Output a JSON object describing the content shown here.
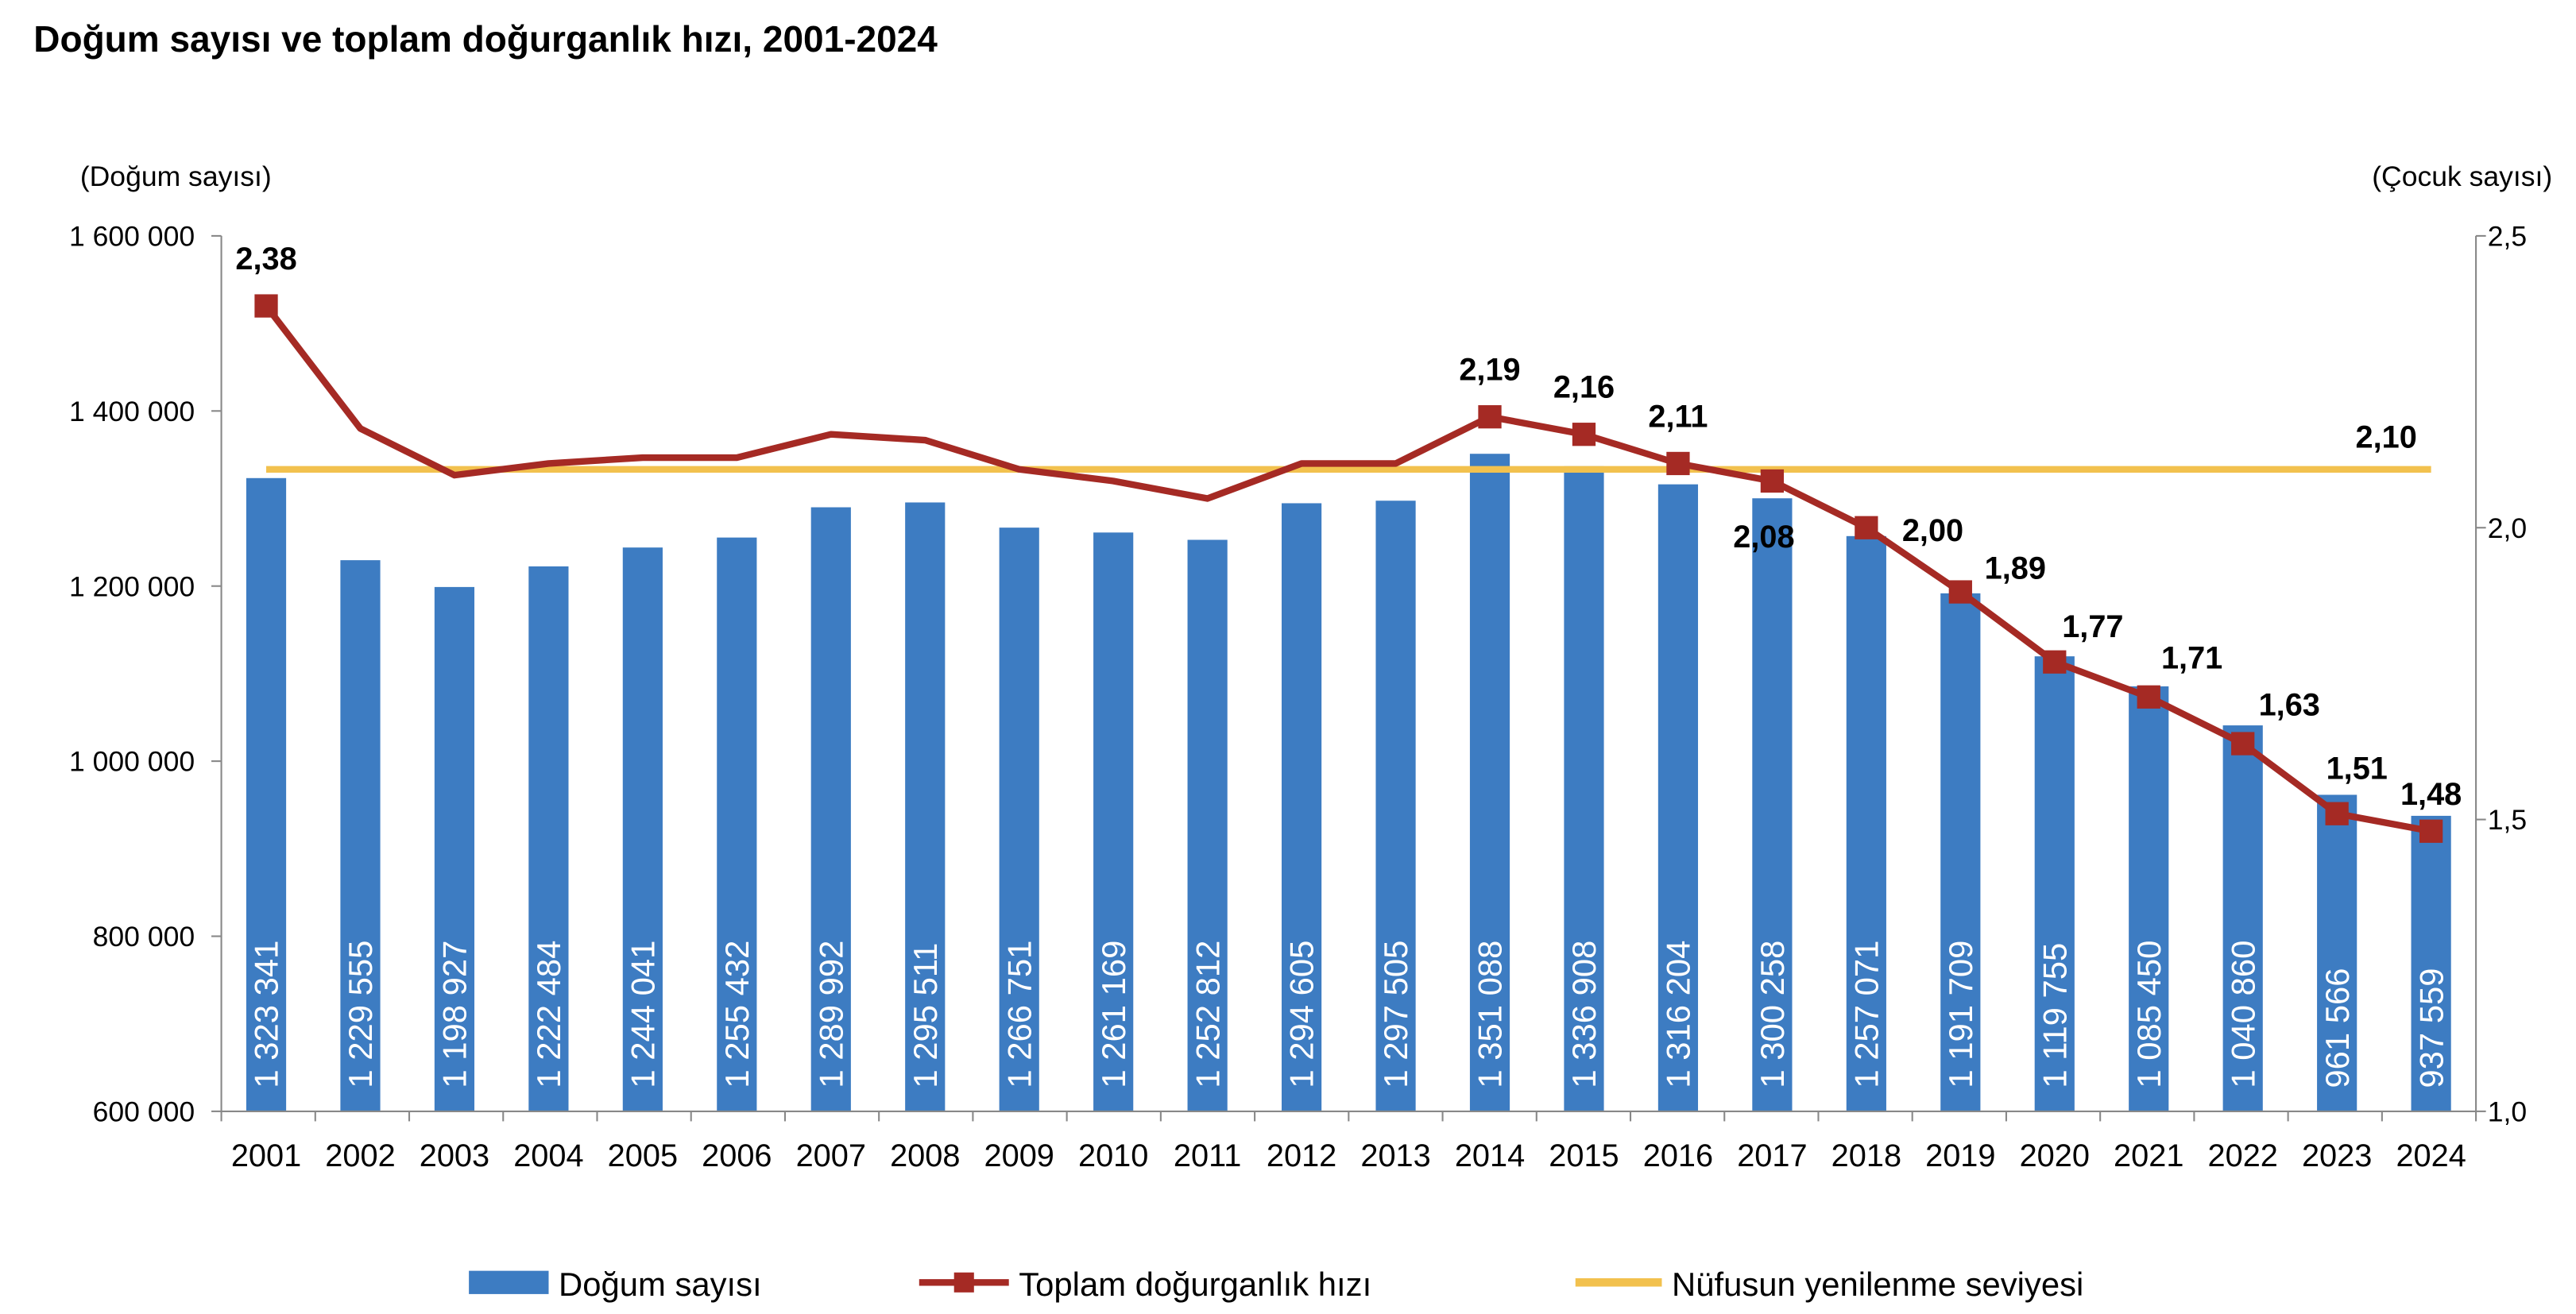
{
  "chart_data": {
    "type": "bar+line",
    "title": "Doğum sayısı ve toplam doğurganlık hızı, 2001-2024",
    "ylabel_left": "(Doğum sayısı)",
    "ylabel_right": "(Çocuk sayısı)",
    "ylim_left": [
      600000,
      1600000
    ],
    "ylim_right": [
      1.0,
      2.5
    ],
    "left_ticks": [
      "600 000",
      "800 000",
      "1 000 000",
      "1 200 000",
      "1 400 000",
      "1 600 000"
    ],
    "left_tick_values": [
      600000,
      800000,
      1000000,
      1200000,
      1400000,
      1600000
    ],
    "right_ticks": [
      "1,0",
      "1,5",
      "2,0",
      "2,5"
    ],
    "right_tick_values": [
      1.0,
      1.5,
      2.0,
      2.5
    ],
    "categories": [
      "2001",
      "2002",
      "2003",
      "2004",
      "2005",
      "2006",
      "2007",
      "2008",
      "2009",
      "2010",
      "2011",
      "2012",
      "2013",
      "2014",
      "2015",
      "2016",
      "2017",
      "2018",
      "2019",
      "2020",
      "2021",
      "2022",
      "2023",
      "2024"
    ],
    "grid": false,
    "legend_position": "bottom",
    "series": [
      {
        "name": "Doğum sayısı",
        "type": "bar",
        "axis": "left",
        "color": "#3D7CC2",
        "values": [
          1323341,
          1229555,
          1198927,
          1222484,
          1244041,
          1255432,
          1289992,
          1295511,
          1266751,
          1261169,
          1252812,
          1294605,
          1297505,
          1351088,
          1336908,
          1316204,
          1300258,
          1257071,
          1191709,
          1119755,
          1085450,
          1040860,
          961566,
          937559
        ],
        "labels": [
          "1 323 341",
          "1 229 555",
          "1 198 927",
          "1 222 484",
          "1 244 041",
          "1 255 432",
          "1 289 992",
          "1 295 511",
          "1 266 751",
          "1 261 169",
          "1 252 812",
          "1 294 605",
          "1 297 505",
          "1 351 088",
          "1 336 908",
          "1 316 204",
          "1 300 258",
          "1 257 071",
          "1 191 709",
          "1 119 755",
          "1 085 450",
          "1 040 860",
          "961 566",
          "937 559"
        ]
      },
      {
        "name": "Toplam doğurganlık hızı",
        "type": "line",
        "axis": "right",
        "color": "#A52A24",
        "values": [
          2.38,
          2.17,
          2.09,
          2.11,
          2.12,
          2.12,
          2.16,
          2.15,
          2.1,
          2.08,
          2.05,
          2.11,
          2.11,
          2.19,
          2.16,
          2.11,
          2.08,
          2.0,
          1.89,
          1.77,
          1.71,
          1.63,
          1.51,
          1.48
        ],
        "labels": [
          "2,38",
          "",
          "",
          "",
          "",
          "",
          "",
          "",
          "",
          "",
          "",
          "",
          "",
          "2,19",
          "2,16",
          "2,11",
          "2,08",
          "2,00",
          "1,89",
          "1,77",
          "1,71",
          "1,63",
          "1,51",
          "1,48"
        ],
        "markers": [
          true,
          false,
          false,
          false,
          false,
          false,
          false,
          false,
          false,
          false,
          false,
          false,
          false,
          true,
          true,
          true,
          true,
          true,
          true,
          true,
          true,
          true,
          true,
          true
        ]
      },
      {
        "name": "Nüfusun yenilenme seviyesi",
        "type": "line",
        "axis": "right",
        "color": "#F2C14E",
        "value": 2.1,
        "label": "2,10"
      }
    ]
  }
}
